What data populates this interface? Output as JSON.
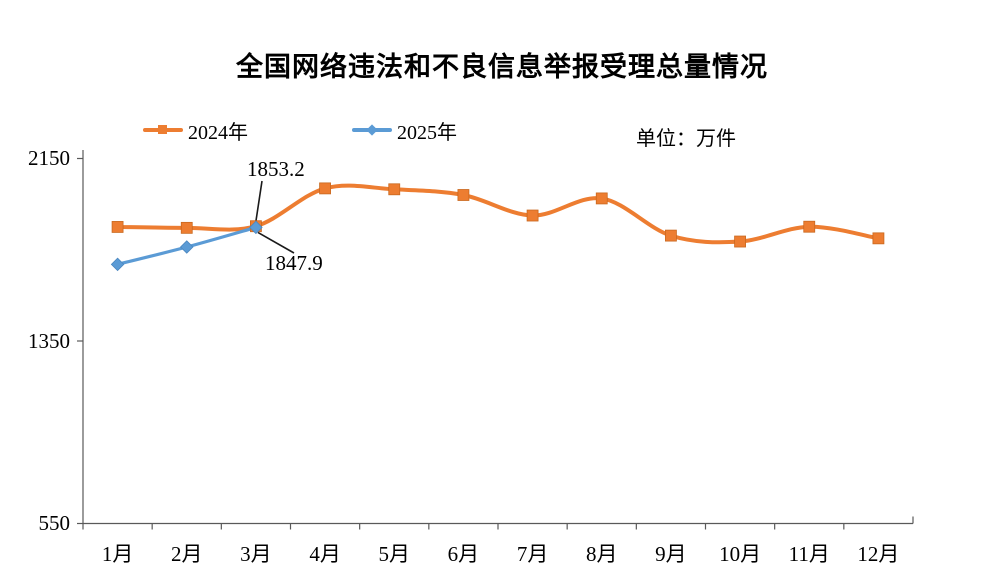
{
  "title": "全国网络违法和不良信息举报受理总量情况",
  "unit_label": "单位：万件",
  "chart_data": {
    "type": "line",
    "title": "全国网络违法和不良信息举报受理总量情况",
    "unit": "万件",
    "categories": [
      "1月",
      "2月",
      "3月",
      "4月",
      "5月",
      "6月",
      "7月",
      "8月",
      "9月",
      "10月",
      "11月",
      "12月"
    ],
    "series": [
      {
        "name": "2024年",
        "color": "#ED7D31",
        "marker": "square",
        "values": [
          1850,
          1846,
          1853.2,
          2019,
          2015,
          1990,
          1900,
          1975,
          1812,
          1786,
          1851,
          1800
        ]
      },
      {
        "name": "2025年",
        "color": "#5B9BD5",
        "marker": "diamond",
        "values": [
          1686,
          1762,
          1847.9
        ]
      }
    ],
    "annotations": [
      {
        "text": "1853.2",
        "series": "2024年",
        "category": "3月"
      },
      {
        "text": "1847.9",
        "series": "2025年",
        "category": "3月"
      }
    ],
    "ylim": [
      550,
      2150
    ],
    "yticks": [
      "2150",
      "1350",
      "550"
    ],
    "grid": false,
    "legend_position": "top-left",
    "smooth": true,
    "axis_color": "#595959"
  }
}
